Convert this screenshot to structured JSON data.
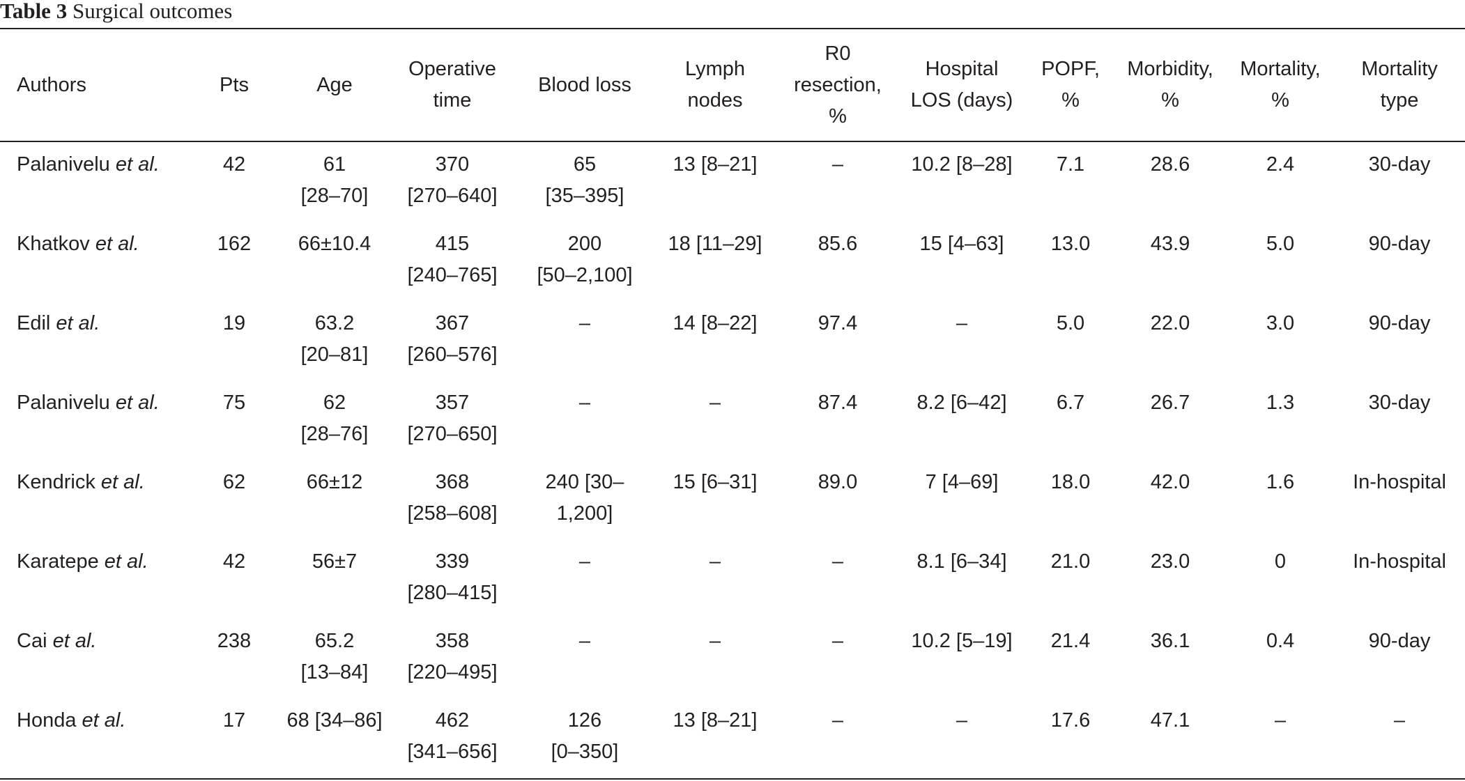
{
  "caption": {
    "label": "Table 3",
    "title": "Surgical outcomes"
  },
  "headers": {
    "authors": "Authors",
    "pts": "Pts",
    "age": "Age",
    "operative_time": [
      "Operative",
      "time"
    ],
    "blood_loss": "Blood loss",
    "lymph_nodes": [
      "Lymph",
      "nodes"
    ],
    "r0": [
      "R0",
      "resection,",
      "%"
    ],
    "los": [
      "Hospital",
      "LOS (days)"
    ],
    "popf": [
      "POPF,",
      "%"
    ],
    "morbidity": [
      "Morbidity,",
      "%"
    ],
    "mortality": [
      "Mortality,",
      "%"
    ],
    "mortality_type": [
      "Mortality",
      "type"
    ]
  },
  "rows": [
    {
      "author": "Palanivelu",
      "etal": "et al.",
      "pts": "42",
      "age": [
        "61",
        "[28–70]"
      ],
      "op": [
        "370",
        "[270–640]"
      ],
      "bl": [
        "65",
        "[35–395]"
      ],
      "ln": [
        "13 [8–21]"
      ],
      "r0": "–",
      "los": "10.2 [8–28]",
      "popf": "7.1",
      "morb": "28.6",
      "mort": "2.4",
      "type": "30-day"
    },
    {
      "author": "Khatkov",
      "etal": "et al.",
      "pts": "162",
      "age": [
        "66±10.4"
      ],
      "op": [
        "415",
        "[240–765]"
      ],
      "bl": [
        "200",
        "[50–2,100]"
      ],
      "ln": [
        "18 [11–29]"
      ],
      "r0": "85.6",
      "los": "15 [4–63]",
      "popf": "13.0",
      "morb": "43.9",
      "mort": "5.0",
      "type": "90-day"
    },
    {
      "author": "Edil",
      "etal": "et al.",
      "pts": "19",
      "age": [
        "63.2",
        "[20–81]"
      ],
      "op": [
        "367",
        "[260–576]"
      ],
      "bl": [
        "–"
      ],
      "ln": [
        "14 [8–22]"
      ],
      "r0": "97.4",
      "los": "–",
      "popf": "5.0",
      "morb": "22.0",
      "mort": "3.0",
      "type": "90-day"
    },
    {
      "author": "Palanivelu",
      "etal": "et al.",
      "pts": "75",
      "age": [
        "62",
        "[28–76]"
      ],
      "op": [
        "357",
        "[270–650]"
      ],
      "bl": [
        "–"
      ],
      "ln": [
        "–"
      ],
      "r0": "87.4",
      "los": "8.2 [6–42]",
      "popf": "6.7",
      "morb": "26.7",
      "mort": "1.3",
      "type": "30-day"
    },
    {
      "author": "Kendrick",
      "etal": "et al.",
      "pts": "62",
      "age": [
        "66±12"
      ],
      "op": [
        "368",
        "[258–608]"
      ],
      "bl": [
        "240 [30–",
        "1,200]"
      ],
      "ln": [
        "15 [6–31]"
      ],
      "r0": "89.0",
      "los": "7 [4–69]",
      "popf": "18.0",
      "morb": "42.0",
      "mort": "1.6",
      "type": "In-hospital"
    },
    {
      "author": "Karatepe",
      "etal": "et al.",
      "pts": "42",
      "age": [
        "56±7"
      ],
      "op": [
        "339",
        "[280–415]"
      ],
      "bl": [
        "–"
      ],
      "ln": [
        "–"
      ],
      "r0": "–",
      "los": "8.1 [6–34]",
      "popf": "21.0",
      "morb": "23.0",
      "mort": "0",
      "type": "In-hospital"
    },
    {
      "author": "Cai",
      "etal": "et al.",
      "pts": "238",
      "age": [
        "65.2",
        "[13–84]"
      ],
      "op": [
        "358",
        "[220–495]"
      ],
      "bl": [
        "–"
      ],
      "ln": [
        "–"
      ],
      "r0": "–",
      "los": "10.2 [5–19]",
      "popf": "21.4",
      "morb": "36.1",
      "mort": "0.4",
      "type": "90-day"
    },
    {
      "author": "Honda",
      "etal": "et al.",
      "pts": "17",
      "age": [
        "68 [34–86]"
      ],
      "op": [
        "462",
        "[341–656]"
      ],
      "bl": [
        "126",
        "[0–350]"
      ],
      "ln": [
        "13 [8–21]"
      ],
      "r0": "–",
      "los": "–",
      "popf": "17.6",
      "morb": "47.1",
      "mort": "–",
      "type": "–"
    }
  ]
}
